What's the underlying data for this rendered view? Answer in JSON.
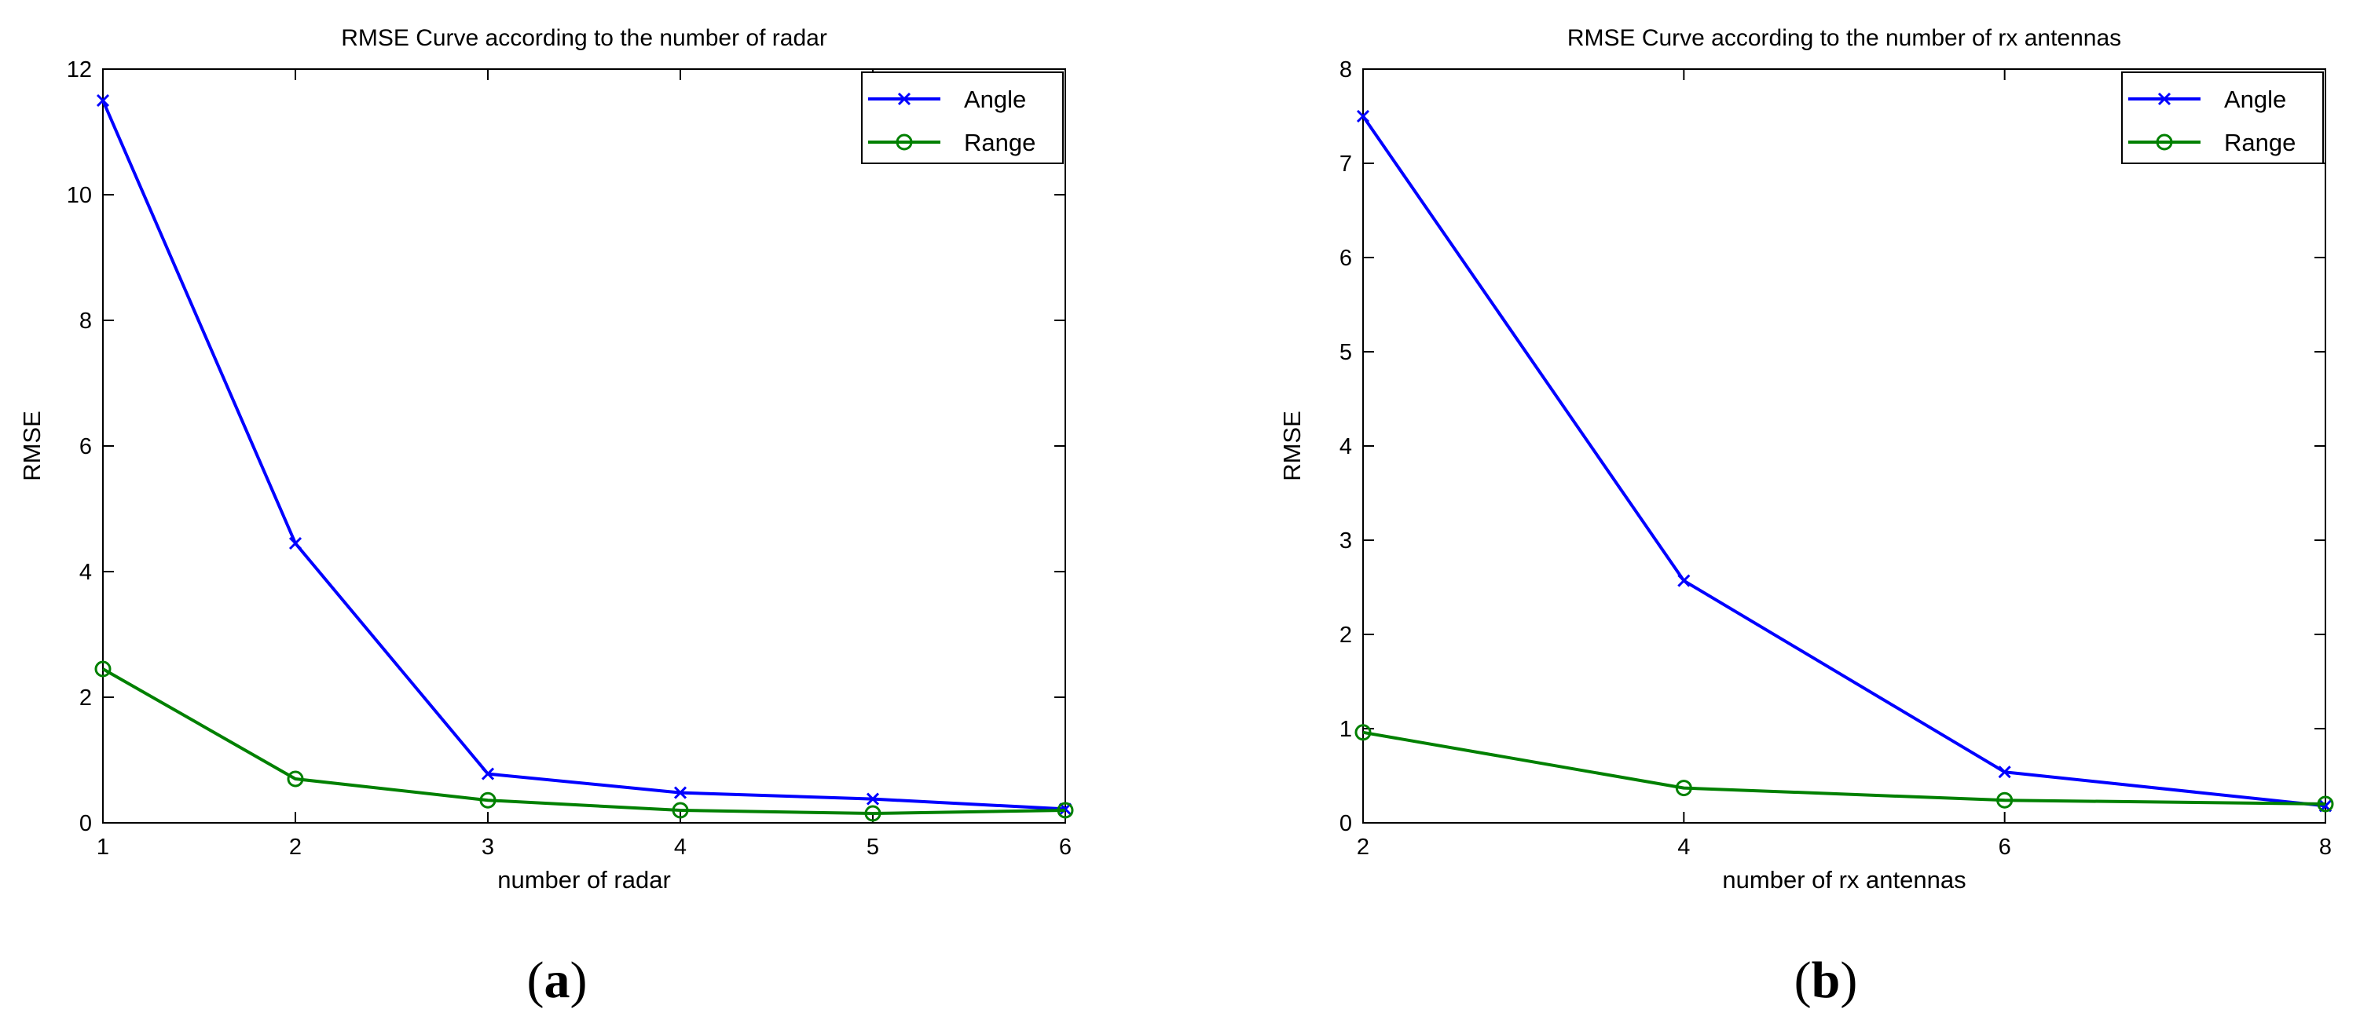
{
  "chart_data": [
    {
      "type": "line",
      "title": "RMSE Curve according to the number of radar",
      "xlabel": "number of radar",
      "ylabel": "RMSE",
      "xlim": [
        1,
        6
      ],
      "ylim": [
        0,
        12
      ],
      "xticks": [
        1,
        2,
        3,
        4,
        5,
        6
      ],
      "yticks": [
        0,
        2,
        4,
        6,
        8,
        10,
        12
      ],
      "grid": false,
      "legend_position": "top-right",
      "panel_label": "a",
      "series": [
        {
          "name": "Angle",
          "color": "#0000ff",
          "marker": "x",
          "x": [
            1,
            2,
            3,
            4,
            5,
            6
          ],
          "y": [
            11.5,
            4.45,
            0.78,
            0.48,
            0.38,
            0.22
          ]
        },
        {
          "name": "Range",
          "color": "#008000",
          "marker": "o",
          "x": [
            1,
            2,
            3,
            4,
            5,
            6
          ],
          "y": [
            2.45,
            0.7,
            0.36,
            0.2,
            0.15,
            0.2
          ]
        }
      ]
    },
    {
      "type": "line",
      "title": "RMSE Curve according to the number of rx antennas",
      "xlabel": "number of rx antennas",
      "ylabel": "RMSE",
      "xlim": [
        2,
        8
      ],
      "ylim": [
        0,
        8
      ],
      "xticks": [
        2,
        4,
        6,
        8
      ],
      "yticks": [
        0,
        1,
        2,
        3,
        4,
        5,
        6,
        7,
        8
      ],
      "grid": false,
      "legend_position": "top-right",
      "panel_label": "b",
      "series": [
        {
          "name": "Angle",
          "color": "#0000ff",
          "marker": "x",
          "x": [
            2,
            4,
            6,
            8
          ],
          "y": [
            7.5,
            2.57,
            0.54,
            0.18
          ]
        },
        {
          "name": "Range",
          "color": "#008000",
          "marker": "o",
          "x": [
            2,
            4,
            6,
            8
          ],
          "y": [
            0.96,
            0.37,
            0.24,
            0.2
          ]
        }
      ]
    }
  ]
}
